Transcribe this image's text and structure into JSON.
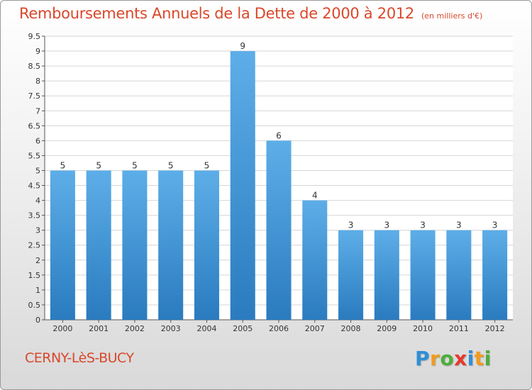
{
  "header": {
    "title": "Remboursements Annuels de la Dette de 2000 à 2012",
    "unit_note": "(en milliers d'€)"
  },
  "footer": {
    "commune": "CERNY-LèS-BUCY",
    "logo_letters": [
      "P",
      "r",
      "o",
      "x",
      "i",
      "t",
      "i"
    ],
    "logo_colors": [
      "#2f8fd6",
      "#f39b1d",
      "#4caf3a",
      "#e8382d",
      "#2f8fd6",
      "#f39b1d",
      "#4caf3a"
    ]
  },
  "chart_data": {
    "type": "bar",
    "title": "Remboursements Annuels de la Dette de 2000 à 2012",
    "xlabel": "",
    "ylabel": "",
    "categories": [
      "2000",
      "2001",
      "2002",
      "2003",
      "2004",
      "2005",
      "2006",
      "2007",
      "2008",
      "2009",
      "2010",
      "2011",
      "2012"
    ],
    "values": [
      5,
      5,
      5,
      5,
      5,
      9,
      6,
      4,
      3,
      3,
      3,
      3,
      3
    ],
    "ylim": [
      0,
      9.5
    ],
    "y_ticks": [
      0,
      0.5,
      1,
      1.5,
      2,
      2.5,
      3,
      3.5,
      4,
      4.5,
      5,
      5.5,
      6,
      6.5,
      7,
      7.5,
      8,
      8.5,
      9,
      9.5
    ],
    "y_tick_labels": [
      "0",
      "0.5",
      "1",
      "1.5",
      "2",
      "2.5",
      "3",
      "3.5",
      "4",
      "4.5",
      "5",
      "5.5",
      "6",
      "6.5",
      "7",
      "7.5",
      "8",
      "8.5",
      "9",
      "9.5"
    ],
    "grid": true,
    "legend": "none",
    "colors": {
      "bar_top": "#5daee8",
      "bar_bottom": "#2a7bbf",
      "grid": "#d6d6d6",
      "axis": "#555555"
    }
  }
}
